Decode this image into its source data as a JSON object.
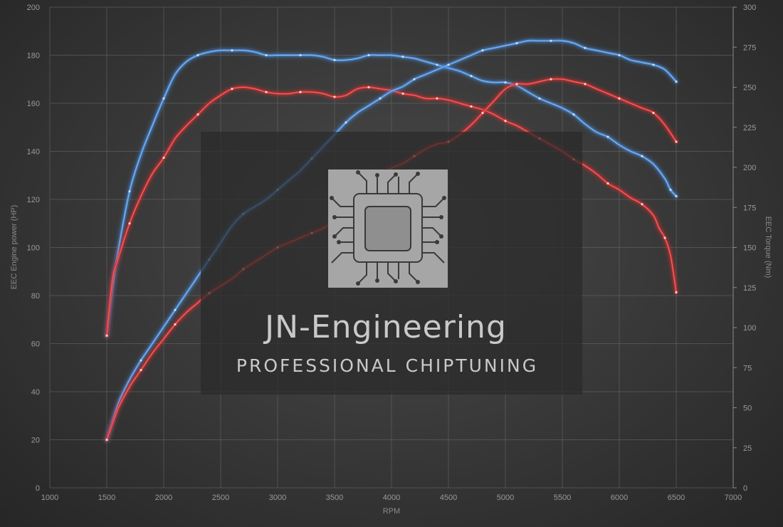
{
  "chart_data": {
    "type": "line",
    "title": "",
    "xlabel": "RPM",
    "ylabel": "EEC Engine power (HP)",
    "y2label": "EEC Torque (Nm)",
    "xlim": [
      1000,
      7000
    ],
    "ylim": [
      0,
      200
    ],
    "y2lim": [
      0,
      300
    ],
    "x_ticks": [
      1000,
      1500,
      2000,
      2500,
      3000,
      3500,
      4000,
      4500,
      5000,
      5500,
      6000,
      6500,
      7000
    ],
    "y_ticks": [
      0,
      20,
      40,
      60,
      80,
      100,
      120,
      140,
      160,
      180,
      200
    ],
    "y2_ticks": [
      0,
      25,
      50,
      75,
      100,
      125,
      150,
      175,
      200,
      225,
      250,
      275,
      300
    ],
    "grid": true,
    "legend": "none",
    "series": [
      {
        "color": "#4a8ad6",
        "axis": "y2",
        "x": [
          1500,
          1550,
          1600,
          1700,
          1800,
          1900,
          2000,
          2100,
          2200,
          2300,
          2400,
          2500,
          2600,
          2700,
          2800,
          2900,
          3000,
          3100,
          3200,
          3300,
          3400,
          3500,
          3600,
          3700,
          3800,
          3900,
          4000,
          4100,
          4200,
          4300,
          4400,
          4500,
          4600,
          4700,
          4800,
          4900,
          5000,
          5100,
          5200,
          5300,
          5400,
          5500,
          5600,
          5700,
          5800,
          5900,
          6000,
          6100,
          6200,
          6300,
          6400,
          6450,
          6500
        ],
        "values": [
          95,
          125,
          148,
          185,
          208,
          226,
          243,
          258,
          266,
          270,
          272,
          273,
          273,
          273,
          272,
          270,
          270,
          270,
          270,
          270,
          269,
          267,
          267,
          268,
          270,
          270,
          270,
          269,
          268,
          266,
          264,
          262,
          260,
          257,
          254,
          253,
          253,
          251,
          247,
          243,
          240,
          237,
          233,
          227,
          222,
          219,
          214,
          210,
          207,
          202,
          193,
          186,
          182
        ]
      },
      {
        "color": "#d23030",
        "axis": "y2",
        "x": [
          1500,
          1550,
          1600,
          1700,
          1800,
          1900,
          2000,
          2100,
          2200,
          2300,
          2400,
          2500,
          2600,
          2700,
          2800,
          2900,
          3000,
          3100,
          3200,
          3300,
          3400,
          3500,
          3600,
          3700,
          3800,
          3900,
          4000,
          4100,
          4200,
          4300,
          4400,
          4500,
          4600,
          4700,
          4800,
          4900,
          5000,
          5100,
          5200,
          5300,
          5400,
          5500,
          5600,
          5700,
          5800,
          5900,
          6000,
          6100,
          6200,
          6300,
          6350,
          6400,
          6450,
          6500
        ],
        "values": [
          95,
          130,
          143,
          165,
          182,
          196,
          206,
          218,
          226,
          233,
          240,
          245,
          249,
          250,
          249,
          247,
          246,
          246,
          247,
          247,
          246,
          244,
          245,
          249,
          250,
          249,
          248,
          246,
          245,
          243,
          243,
          242,
          240,
          238,
          236,
          233,
          229,
          226,
          222,
          218,
          214,
          210,
          205,
          201,
          196,
          190,
          186,
          181,
          177,
          170,
          162,
          156,
          145,
          122
        ]
      },
      {
        "color": "#4a8ad6",
        "axis": "y",
        "x": [
          1500,
          1600,
          1700,
          1800,
          1900,
          2000,
          2100,
          2200,
          2300,
          2400,
          2500,
          2600,
          2700,
          2800,
          2900,
          3000,
          3100,
          3200,
          3300,
          3400,
          3500,
          3600,
          3700,
          3800,
          3900,
          4000,
          4100,
          4200,
          4300,
          4400,
          4500,
          4600,
          4700,
          4800,
          4900,
          5000,
          5100,
          5200,
          5300,
          5400,
          5500,
          5600,
          5700,
          5800,
          5900,
          6000,
          6100,
          6200,
          6300,
          6400,
          6500
        ],
        "values": [
          20,
          35,
          45,
          53,
          60,
          67,
          74,
          81,
          88,
          95,
          102,
          109,
          114,
          117,
          120,
          124,
          128,
          132,
          137,
          142,
          147,
          152,
          156,
          159,
          162,
          165,
          167,
          170,
          172,
          174,
          176,
          178,
          180,
          182,
          183,
          184,
          185,
          186,
          186,
          186,
          186,
          185,
          183,
          182,
          181,
          180,
          178,
          177,
          176,
          174,
          169
        ]
      },
      {
        "color": "#d23030",
        "axis": "y",
        "x": [
          1500,
          1600,
          1700,
          1800,
          1900,
          2000,
          2100,
          2200,
          2300,
          2400,
          2500,
          2600,
          2700,
          2800,
          2900,
          3000,
          3100,
          3200,
          3300,
          3400,
          3500,
          3600,
          3700,
          3800,
          3900,
          4000,
          4100,
          4200,
          4300,
          4400,
          4500,
          4600,
          4700,
          4800,
          4900,
          5000,
          5100,
          5200,
          5300,
          5400,
          5500,
          5600,
          5700,
          5800,
          5900,
          6000,
          6100,
          6200,
          6300,
          6400,
          6500
        ],
        "values": [
          20,
          33,
          42,
          49,
          56,
          62,
          68,
          73,
          77,
          81,
          84,
          87,
          91,
          94,
          97,
          100,
          102,
          104,
          106,
          108,
          111,
          115,
          120,
          126,
          130,
          133,
          135,
          138,
          141,
          143,
          144,
          147,
          151,
          156,
          161,
          166,
          168,
          168,
          169,
          170,
          170,
          169,
          168,
          166,
          164,
          162,
          160,
          158,
          156,
          151,
          144
        ]
      }
    ]
  },
  "branding": {
    "name": "JN-Engineering",
    "tagline": "PROFESSIONAL CHIPTUNING"
  }
}
